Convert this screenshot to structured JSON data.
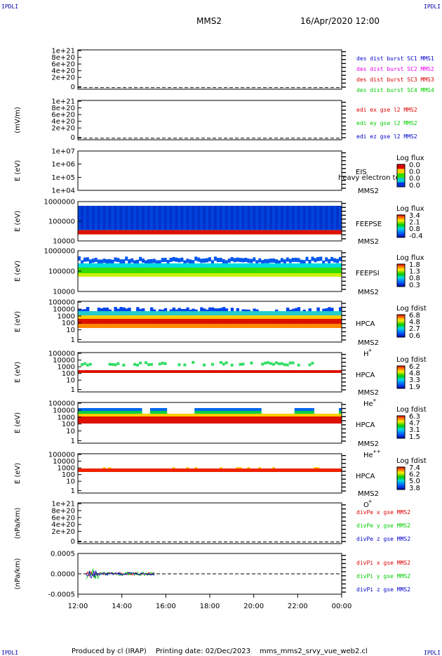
{
  "corner_labels": {
    "left_top": "IPDLI",
    "right_top": "IPDLI",
    "left_bottom": "IPDLI",
    "right_bottom": "IPDLI"
  },
  "header": {
    "spacecraft": "MMS2",
    "datetime": "16/Apr/2020 12:00"
  },
  "footer": {
    "produced_by": "Produced by cl (IRAP)",
    "printing_date": "Printing date: 02/Dec/2023",
    "script": "mms_mms2_srvy_vue_web2.cl"
  },
  "colors": {
    "red": "#dd0000",
    "magenta": "#ee00ee",
    "green": "#00cc00",
    "blue": "#0000cc",
    "frame": "#000000"
  },
  "chart_data": [
    {
      "id": "des",
      "type": "line",
      "ylabel": "",
      "y_ticks": [
        "1e+21",
        "8e+20",
        "6e+20",
        "4e+20",
        "2e+20",
        "0"
      ],
      "ylim": [
        0,
        1e+21
      ],
      "zero_dashed": true,
      "legend": [
        {
          "text": "des dist burst SC1 MMS1",
          "color": "#0000cc"
        },
        {
          "text": "des dist burst SC2 MMS2",
          "color": "#ee00ee"
        },
        {
          "text": "des dist burst SC3 MMS3",
          "color": "#dd0000"
        },
        {
          "text": "des dist burst SC4 MMS4",
          "color": "#00cc00"
        }
      ]
    },
    {
      "id": "edi",
      "type": "line",
      "ylabel": "(mV/m)",
      "y_ticks": [
        "1e+21",
        "8e+20",
        "6e+20",
        "4e+20",
        "2e+20",
        "0"
      ],
      "ylim": [
        0,
        1e+21
      ],
      "zero_dashed": true,
      "legend": [
        {
          "text": "edi ex gse l2 MMS2",
          "color": "#dd0000"
        },
        {
          "text": "edi ey gse l2 MMS2",
          "color": "#00cc00"
        },
        {
          "text": "edi ez gse l2 MMS2",
          "color": "#0000cc"
        }
      ]
    },
    {
      "id": "eis",
      "type": "heatmap",
      "ylabel": "E (eV)",
      "y_ticks": [
        "1e+07",
        "1e+06",
        "1e+05",
        "1e+04"
      ],
      "ylim": [
        10000.0,
        10000000.0
      ],
      "log": true,
      "instrument": [
        "EIS",
        "MMS2"
      ],
      "overlay": "heavy electron to",
      "cbar_title": "Log flux",
      "cbar_ticks": [
        "0.0",
        "0.0",
        "0.0",
        "0.0"
      ]
    },
    {
      "id": "feeps_e",
      "type": "heatmap",
      "ylabel": "E (eV)",
      "y_ticks": [
        "1000000",
        "100000",
        "10000"
      ],
      "ylim": [
        10000.0,
        1000000.0
      ],
      "log": true,
      "instrument": [
        "FEEPSE",
        "MMS2"
      ],
      "cbar_title": "Log flux",
      "cbar_ticks": [
        "3.4",
        "2.1",
        "0.8",
        "-0.4"
      ]
    },
    {
      "id": "feeps_i",
      "type": "heatmap",
      "ylabel": "E (eV)",
      "y_ticks": [
        "1000000",
        "100000",
        "10000"
      ],
      "ylim": [
        10000.0,
        1000000.0
      ],
      "log": true,
      "instrument": [
        "FEEPSI",
        "MMS2"
      ],
      "cbar_title": "Log flux",
      "cbar_ticks": [
        "1.8",
        "1.3",
        "0.8",
        "0.3"
      ]
    },
    {
      "id": "hpca_h",
      "type": "heatmap",
      "ylabel": "E (eV)",
      "y_ticks": [
        "100000",
        "10000",
        "1000",
        "100",
        "10",
        "1"
      ],
      "ylim": [
        1,
        100000.0
      ],
      "log": true,
      "instrument": [
        "HPCA",
        "MMS2"
      ],
      "species": "H",
      "charge": "+",
      "cbar_title": "Log fdist",
      "cbar_ticks": [
        "6.8",
        "4.8",
        "2.7",
        "0.6"
      ]
    },
    {
      "id": "hpca_he1",
      "type": "heatmap",
      "ylabel": "E (eV)",
      "y_ticks": [
        "100000",
        "10000",
        "1000",
        "100",
        "10",
        "1"
      ],
      "ylim": [
        1,
        100000.0
      ],
      "log": true,
      "instrument": [
        "HPCA",
        "MMS2"
      ],
      "species": "He",
      "charge": "+",
      "cbar_title": "Log fdist",
      "cbar_ticks": [
        "6.2",
        "4.8",
        "3.3",
        "1.9"
      ]
    },
    {
      "id": "hpca_he2",
      "type": "heatmap",
      "ylabel": "E (eV)",
      "y_ticks": [
        "100000",
        "10000",
        "1000",
        "100",
        "10",
        "1"
      ],
      "ylim": [
        1,
        100000.0
      ],
      "log": true,
      "instrument": [
        "HPCA",
        "MMS2"
      ],
      "species": "He",
      "charge": "++",
      "cbar_title": "Log fdist",
      "cbar_ticks": [
        "6.3",
        "4.7",
        "3.1",
        "1.5"
      ]
    },
    {
      "id": "hpca_o",
      "type": "heatmap",
      "ylabel": "E (eV)",
      "y_ticks": [
        "100000",
        "10000",
        "1000",
        "100",
        "10",
        "1"
      ],
      "ylim": [
        1,
        100000.0
      ],
      "log": true,
      "instrument": [
        "HPCA",
        "MMS2"
      ],
      "species": "O",
      "charge": "+",
      "cbar_title": "Log fdist",
      "cbar_ticks": [
        "7.4",
        "6.2",
        "5.0",
        "3.8"
      ]
    },
    {
      "id": "divpe",
      "type": "line",
      "ylabel": "(nPa/km)",
      "y_ticks": [
        "1e+21",
        "8e+20",
        "6e+20",
        "4e+20",
        "2e+20",
        "0"
      ],
      "ylim": [
        0,
        1e+21
      ],
      "zero_dashed": true,
      "legend": [
        {
          "text": "divPe x gse MMS2",
          "color": "#dd0000"
        },
        {
          "text": "divPe y gse MMS2",
          "color": "#00cc00"
        },
        {
          "text": "divPe z gse MMS2",
          "color": "#0000cc"
        }
      ]
    },
    {
      "id": "divpi",
      "type": "line",
      "ylabel": "(nPa/km)",
      "y_ticks": [
        "0.0005",
        "0.0000",
        "-0.0005"
      ],
      "ylim": [
        -0.0009,
        0.0009
      ],
      "zero_dashed": true,
      "data_end_hour": 15.5,
      "legend": [
        {
          "text": "divPi x gse MMS2",
          "color": "#dd0000"
        },
        {
          "text": "divPi y gse MMS2",
          "color": "#00cc00"
        },
        {
          "text": "divPi z gse MMS2",
          "color": "#0000cc"
        }
      ]
    }
  ],
  "x_axis": {
    "ticks": [
      "12:00",
      "14:00",
      "16:00",
      "18:00",
      "20:00",
      "22:00",
      "00:00"
    ],
    "range_hours": [
      12,
      24
    ]
  }
}
